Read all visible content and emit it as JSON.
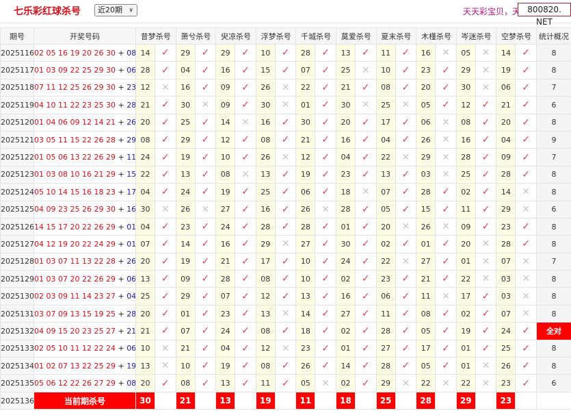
{
  "header": {
    "title": "七乐彩红球杀号",
    "period_select": "近20期",
    "slogan": "天天彩宝贝，天",
    "brand": "800820. NET"
  },
  "colors": {
    "accent": "#d0121b",
    "check": "#d6455b",
    "cross": "#c8c8c8",
    "highlight": "#fdfde6"
  },
  "table": {
    "columns": [
      "期号",
      "开奖号码",
      "昔梦杀号",
      "萧兮杀号",
      "臾凉杀号",
      "浮梦杀号",
      "千城杀号",
      "莫爱杀号",
      "夏末杀号",
      "木槿杀号",
      "岑迷杀号",
      "空梦杀号",
      "统计概况"
    ],
    "rows": [
      {
        "issue": "2025116",
        "reds": "02 05 16 19 20 26 30",
        "blue": "08",
        "kills": [
          "14",
          "29",
          "29",
          "10",
          "28",
          "13",
          "11",
          "16",
          "05",
          "14"
        ],
        "hits": [
          1,
          1,
          1,
          1,
          1,
          1,
          1,
          0,
          0,
          1
        ],
        "stat": "8"
      },
      {
        "issue": "2025117",
        "reds": "01 03 09 22 25 29 30",
        "blue": "06",
        "kills": [
          "28",
          "04",
          "16",
          "15",
          "07",
          "25",
          "10",
          "23",
          "29",
          "19"
        ],
        "hits": [
          1,
          1,
          1,
          1,
          1,
          0,
          1,
          1,
          0,
          1
        ],
        "stat": "8"
      },
      {
        "issue": "2025118",
        "reds": "07 11 12 25 26 29 30",
        "blue": "23",
        "kills": [
          "12",
          "16",
          "09",
          "26",
          "22",
          "21",
          "08",
          "20",
          "30",
          "06"
        ],
        "hits": [
          0,
          1,
          1,
          0,
          1,
          1,
          1,
          1,
          0,
          1
        ],
        "stat": "7"
      },
      {
        "issue": "2025119",
        "reds": "04 10 11 22 23 25 30",
        "blue": "28",
        "kills": [
          "21",
          "30",
          "09",
          "30",
          "01",
          "30",
          "25",
          "05",
          "12",
          "21"
        ],
        "hits": [
          1,
          0,
          1,
          0,
          1,
          0,
          0,
          1,
          1,
          1
        ],
        "stat": "6"
      },
      {
        "issue": "2025120",
        "reds": "01 04 06 09 12 14 21",
        "blue": "26",
        "kills": [
          "20",
          "25",
          "14",
          "16",
          "30",
          "20",
          "17",
          "06",
          "08",
          "20"
        ],
        "hits": [
          1,
          1,
          0,
          1,
          1,
          1,
          1,
          0,
          1,
          1
        ],
        "stat": "8"
      },
      {
        "issue": "2025121",
        "reds": "03 05 11 15 22 26 28",
        "blue": "29",
        "kills": [
          "08",
          "29",
          "12",
          "08",
          "21",
          "16",
          "04",
          "26",
          "16",
          "04"
        ],
        "hits": [
          1,
          1,
          1,
          1,
          1,
          1,
          1,
          0,
          1,
          1
        ],
        "stat": "9"
      },
      {
        "issue": "2025122",
        "reds": "01 05 06 13 22 26 29",
        "blue": "11",
        "kills": [
          "24",
          "19",
          "10",
          "26",
          "12",
          "04",
          "22",
          "29",
          "28",
          "09"
        ],
        "hits": [
          1,
          1,
          1,
          0,
          1,
          1,
          0,
          0,
          1,
          1
        ],
        "stat": "7"
      },
      {
        "issue": "2025123",
        "reds": "01 03 08 10 16 21 29",
        "blue": "15",
        "kills": [
          "22",
          "13",
          "08",
          "13",
          "19",
          "23",
          "13",
          "03",
          "25",
          "28"
        ],
        "hits": [
          1,
          1,
          0,
          1,
          1,
          1,
          1,
          0,
          1,
          1
        ],
        "stat": "8"
      },
      {
        "issue": "2025124",
        "reds": "05 10 14 15 16 18 23",
        "blue": "17",
        "kills": [
          "04",
          "24",
          "19",
          "25",
          "06",
          "18",
          "07",
          "28",
          "02",
          "14"
        ],
        "hits": [
          1,
          1,
          1,
          1,
          1,
          0,
          1,
          1,
          1,
          0
        ],
        "stat": "8"
      },
      {
        "issue": "2025125",
        "reds": "04 09 23 25 26 29 30",
        "blue": "16",
        "kills": [
          "30",
          "26",
          "27",
          "16",
          "26",
          "28",
          "05",
          "15",
          "11",
          "29"
        ],
        "hits": [
          0,
          0,
          1,
          1,
          0,
          1,
          1,
          1,
          1,
          0
        ],
        "stat": "6"
      },
      {
        "issue": "2025126",
        "reds": "14 15 17 20 22 26 29",
        "blue": "01",
        "kills": [
          "04",
          "23",
          "24",
          "28",
          "28",
          "01",
          "20",
          "26",
          "09",
          "23"
        ],
        "hits": [
          1,
          1,
          1,
          1,
          1,
          1,
          0,
          0,
          1,
          1
        ],
        "stat": "8"
      },
      {
        "issue": "2025127",
        "reds": "04 12 19 20 22 24 29",
        "blue": "01",
        "kills": [
          "07",
          "14",
          "16",
          "29",
          "27",
          "30",
          "02",
          "01",
          "20",
          "28"
        ],
        "hits": [
          1,
          1,
          1,
          0,
          1,
          1,
          1,
          1,
          0,
          1
        ],
        "stat": "8"
      },
      {
        "issue": "2025128",
        "reds": "01 03 07 11 13 22 28",
        "blue": "26",
        "kills": [
          "20",
          "19",
          "21",
          "17",
          "10",
          "24",
          "22",
          "27",
          "01",
          "07"
        ],
        "hits": [
          1,
          1,
          1,
          1,
          1,
          1,
          0,
          1,
          0,
          0
        ],
        "stat": "7"
      },
      {
        "issue": "2025129",
        "reds": "01 03 07 20 22 26 29",
        "blue": "06",
        "kills": [
          "13",
          "09",
          "28",
          "08",
          "10",
          "02",
          "23",
          "21",
          "22",
          "03"
        ],
        "hits": [
          1,
          1,
          1,
          1,
          1,
          1,
          1,
          1,
          0,
          0
        ],
        "stat": "8"
      },
      {
        "issue": "2025130",
        "reds": "02 03 09 11 14 23 27",
        "blue": "04",
        "kills": [
          "25",
          "29",
          "07",
          "12",
          "13",
          "16",
          "06",
          "11",
          "17",
          "03"
        ],
        "hits": [
          1,
          1,
          1,
          1,
          1,
          1,
          1,
          0,
          1,
          0
        ],
        "stat": "8"
      },
      {
        "issue": "2025131",
        "reds": "03 07 09 13 15 19 25",
        "blue": "28",
        "kills": [
          "20",
          "01",
          "23",
          "13",
          "14",
          "27",
          "11",
          "08",
          "02",
          "07"
        ],
        "hits": [
          1,
          1,
          1,
          0,
          1,
          1,
          1,
          1,
          1,
          0
        ],
        "stat": "8"
      },
      {
        "issue": "2025132",
        "reds": "04 09 15 20 23 25 27",
        "blue": "21",
        "kills": [
          "21",
          "07",
          "24",
          "08",
          "18",
          "02",
          "28",
          "05",
          "19",
          "24"
        ],
        "hits": [
          1,
          1,
          1,
          1,
          1,
          1,
          1,
          1,
          1,
          1
        ],
        "stat": "全对"
      },
      {
        "issue": "2025133",
        "reds": "02 05 10 11 12 22 24",
        "blue": "06",
        "kills": [
          "10",
          "21",
          "04",
          "12",
          "23",
          "01",
          "27",
          "17",
          "01",
          "25"
        ],
        "hits": [
          0,
          1,
          1,
          0,
          1,
          1,
          1,
          1,
          1,
          1
        ],
        "stat": "8"
      },
      {
        "issue": "2025134",
        "reds": "01 02 07 13 22 25 29",
        "blue": "19",
        "kills": [
          "13",
          "10",
          "19",
          "08",
          "26",
          "14",
          "28",
          "05",
          "01",
          "26"
        ],
        "hits": [
          0,
          1,
          1,
          1,
          1,
          1,
          1,
          1,
          0,
          1
        ],
        "stat": "8"
      },
      {
        "issue": "2025135",
        "reds": "05 06 12 22 26 27 29",
        "blue": "08",
        "kills": [
          "20",
          "08",
          "13",
          "11",
          "05",
          "02",
          "29",
          "22",
          "22",
          "23"
        ],
        "hits": [
          1,
          1,
          1,
          1,
          0,
          1,
          0,
          0,
          0,
          1
        ],
        "stat": "6"
      }
    ],
    "current": {
      "issue": "2025136",
      "label": "当前期杀号",
      "kills": [
        "30",
        "21",
        "13",
        "19",
        "11",
        "18",
        "25",
        "28",
        "29",
        "23"
      ]
    }
  }
}
